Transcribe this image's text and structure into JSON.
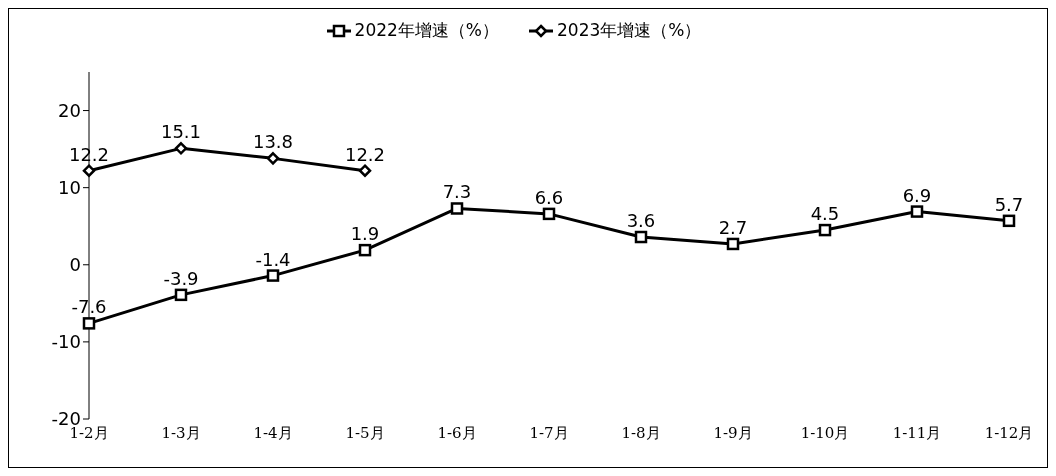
{
  "chart_data": {
    "type": "line",
    "categories": [
      "1-2月",
      "1-3月",
      "1-4月",
      "1-5月",
      "1-6月",
      "1-7月",
      "1-8月",
      "1-9月",
      "1-10月",
      "1-11月",
      "1-12月"
    ],
    "series": [
      {
        "name": "2022年增速（%）",
        "color": "#000000",
        "marker": "square",
        "values": [
          -7.6,
          -3.9,
          -1.4,
          1.9,
          7.3,
          6.6,
          3.6,
          2.7,
          4.5,
          6.9,
          5.7
        ]
      },
      {
        "name": "2023年增速（%）",
        "color": "#000000",
        "marker": "diamond",
        "values": [
          12.2,
          15.1,
          13.8,
          12.2,
          null,
          null,
          null,
          null,
          null,
          null,
          null
        ]
      }
    ],
    "ylim": [
      -20,
      25
    ],
    "yticks": [
      -20,
      -10,
      0,
      10,
      20
    ],
    "grid": false,
    "legend": "top",
    "data_labels": true,
    "line_style": "solid"
  }
}
